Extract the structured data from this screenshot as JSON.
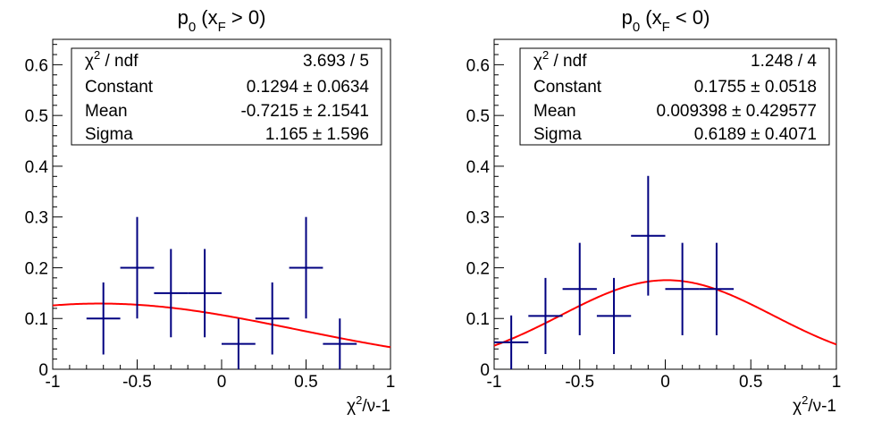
{
  "chart_data": [
    {
      "type": "scatter",
      "title_main": "p",
      "title_sub": "0",
      "title_open": " (x",
      "title_sub2": "F",
      "title_close": " > 0)",
      "xlabel_chi": "χ",
      "xlabel_sup": "2",
      "xlabel_rest": "/ν-1",
      "xlim": [
        -1,
        1
      ],
      "ylim": [
        0,
        0.65
      ],
      "xticks": [
        -1,
        -0.5,
        0,
        0.5,
        1
      ],
      "xtick_labels": [
        "-1",
        "-0.5",
        "0",
        "0.5",
        "1"
      ],
      "yticks": [
        0,
        0.1,
        0.2,
        0.3,
        0.4,
        0.5,
        0.6
      ],
      "ytick_labels": [
        "0",
        "0.1",
        "0.2",
        "0.3",
        "0.4",
        "0.5",
        "0.6"
      ],
      "points": [
        {
          "x": -0.7,
          "y": 0.1,
          "xerr": 0.1,
          "yerr": 0.071
        },
        {
          "x": -0.5,
          "y": 0.2,
          "xerr": 0.1,
          "yerr": 0.1
        },
        {
          "x": -0.3,
          "y": 0.15,
          "xerr": 0.1,
          "yerr": 0.087
        },
        {
          "x": -0.1,
          "y": 0.15,
          "xerr": 0.1,
          "yerr": 0.087
        },
        {
          "x": 0.1,
          "y": 0.05,
          "xerr": 0.1,
          "yerr": 0.05
        },
        {
          "x": 0.3,
          "y": 0.1,
          "xerr": 0.1,
          "yerr": 0.071
        },
        {
          "x": 0.5,
          "y": 0.2,
          "xerr": 0.1,
          "yerr": 0.1
        },
        {
          "x": 0.7,
          "y": 0.05,
          "xerr": 0.1,
          "yerr": 0.05
        }
      ],
      "fit": {
        "function": "gaus",
        "constant": 0.1294,
        "mean": -0.7215,
        "sigma": 1.165,
        "range": [
          -1,
          1
        ]
      },
      "stats": [
        {
          "label_chi": "χ",
          "label_sup": "2",
          "label_rest": " / ndf",
          "value": "3.693 / 5"
        },
        {
          "label": "Constant",
          "value": "0.1294 ± 0.0634"
        },
        {
          "label": "Mean",
          "value": "-0.7215 ± 2.1541"
        },
        {
          "label": "Sigma",
          "value": "1.165 ± 1.596"
        }
      ],
      "colors": {
        "points": "#000080",
        "fit": "#ff0000"
      }
    },
    {
      "type": "scatter",
      "title_main": "p",
      "title_sub": "0",
      "title_open": " (x",
      "title_sub2": "F",
      "title_close": " < 0)",
      "xlabel_chi": "χ",
      "xlabel_sup": "2",
      "xlabel_rest": "/ν-1",
      "xlim": [
        -1,
        1
      ],
      "ylim": [
        0,
        0.65
      ],
      "xticks": [
        -1,
        -0.5,
        0,
        0.5,
        1
      ],
      "xtick_labels": [
        "-1",
        "-0.5",
        "0",
        "0.5",
        "1"
      ],
      "yticks": [
        0,
        0.1,
        0.2,
        0.3,
        0.4,
        0.5,
        0.6
      ],
      "ytick_labels": [
        "0",
        "0.1",
        "0.2",
        "0.3",
        "0.4",
        "0.5",
        "0.6"
      ],
      "points": [
        {
          "x": -0.9,
          "y": 0.053,
          "xerr": 0.1,
          "yerr": 0.053
        },
        {
          "x": -0.7,
          "y": 0.105,
          "xerr": 0.1,
          "yerr": 0.075
        },
        {
          "x": -0.5,
          "y": 0.158,
          "xerr": 0.1,
          "yerr": 0.091
        },
        {
          "x": -0.3,
          "y": 0.105,
          "xerr": 0.1,
          "yerr": 0.075
        },
        {
          "x": -0.1,
          "y": 0.263,
          "xerr": 0.1,
          "yerr": 0.118
        },
        {
          "x": 0.1,
          "y": 0.158,
          "xerr": 0.1,
          "yerr": 0.091
        },
        {
          "x": 0.3,
          "y": 0.158,
          "xerr": 0.1,
          "yerr": 0.091
        }
      ],
      "fit": {
        "function": "gaus",
        "constant": 0.1755,
        "mean": 0.009398,
        "sigma": 0.6189,
        "range": [
          -1,
          1
        ]
      },
      "stats": [
        {
          "label_chi": "χ",
          "label_sup": "2",
          "label_rest": " / ndf",
          "value": "1.248 / 4"
        },
        {
          "label": "Constant",
          "value": "0.1755 ± 0.0518"
        },
        {
          "label": "Mean",
          "value": "0.009398 ± 0.429577"
        },
        {
          "label": "Sigma",
          "value": "0.6189 ± 0.4071"
        }
      ],
      "colors": {
        "points": "#000080",
        "fit": "#ff0000"
      }
    }
  ]
}
